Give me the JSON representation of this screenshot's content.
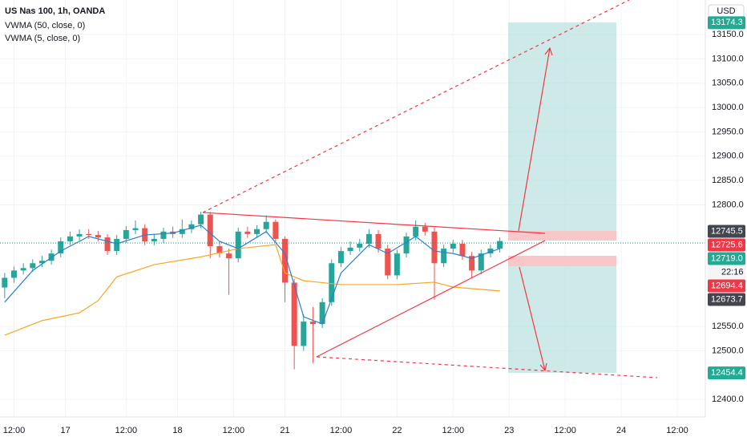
{
  "chart_data": {
    "type": "candlestick",
    "title": "US Nas 100, 1h, OANDA",
    "currency": "USD",
    "xlim": [
      -3,
      148
    ],
    "ylim": [
      12364,
      13221
    ],
    "xticks": [
      {
        "value": 0,
        "label": "12:00"
      },
      {
        "value": 11,
        "label": "17"
      },
      {
        "value": 24,
        "label": "12:00"
      },
      {
        "value": 35,
        "label": "18"
      },
      {
        "value": 47,
        "label": "12:00"
      },
      {
        "value": 58,
        "label": "21"
      },
      {
        "value": 70,
        "label": "12:00"
      },
      {
        "value": 82,
        "label": "22"
      },
      {
        "value": 94,
        "label": "12:00"
      },
      {
        "value": 106,
        "label": "23"
      },
      {
        "value": 118,
        "label": "12:00"
      },
      {
        "value": 130,
        "label": "24"
      },
      {
        "value": 142,
        "label": "12:00"
      }
    ],
    "yticks": [
      {
        "value": 12400,
        "label": "12400.0"
      },
      {
        "value": 12500,
        "label": "12500.0"
      },
      {
        "value": 12550,
        "label": "12550.0"
      },
      {
        "value": 12800,
        "label": "12800.0"
      },
      {
        "value": 12850,
        "label": "12850.0"
      },
      {
        "value": 12900,
        "label": "12900.0"
      },
      {
        "value": 12950,
        "label": "12950.0"
      },
      {
        "value": 13000,
        "label": "13000.0"
      },
      {
        "value": 13050,
        "label": "13050.0"
      },
      {
        "value": 13100,
        "label": "13100.0"
      },
      {
        "value": 13150,
        "label": "13150.0"
      }
    ],
    "grid": true,
    "up_color": "#26a69a",
    "down_color": "#ef5350",
    "candles": {
      "x": [
        -2,
        0,
        2,
        4,
        6,
        8,
        10,
        12,
        14,
        16,
        18,
        20,
        22,
        24,
        26,
        28,
        30,
        32,
        34,
        36,
        38,
        40,
        42,
        44,
        46,
        48,
        50,
        52,
        54,
        56,
        58,
        60,
        62,
        64,
        66,
        68,
        70,
        72,
        74,
        76,
        78,
        80,
        82,
        84,
        86,
        88,
        90,
        92,
        94,
        96,
        98,
        100,
        102,
        104
      ],
      "open": [
        12630,
        12650,
        12665,
        12670,
        12680,
        12685,
        12700,
        12725,
        12735,
        12740,
        12738,
        12733,
        12705,
        12730,
        12748,
        12752,
        12725,
        12730,
        12745,
        12740,
        12750,
        12760,
        12780,
        12715,
        12700,
        12690,
        12745,
        12740,
        12750,
        12765,
        12730,
        12640,
        12510,
        12560,
        12555,
        12600,
        12680,
        12705,
        12712,
        12720,
        12740,
        12710,
        12655,
        12700,
        12735,
        12755,
        12745,
        12680,
        12710,
        12720,
        12695,
        12665,
        12700,
        12710
      ],
      "high": [
        12660,
        12673,
        12680,
        12688,
        12695,
        12708,
        12733,
        12745,
        12750,
        12750,
        12746,
        12740,
        12738,
        12756,
        12768,
        12760,
        12740,
        12753,
        12755,
        12770,
        12768,
        12786,
        12785,
        12725,
        12710,
        12753,
        12755,
        12758,
        12778,
        12770,
        12735,
        12648,
        12575,
        12590,
        12608,
        12688,
        12713,
        12725,
        12730,
        12750,
        12748,
        12718,
        12708,
        12743,
        12768,
        12763,
        12753,
        12718,
        12728,
        12728,
        12703,
        12708,
        12718,
        12733
      ],
      "low": [
        12608,
        12640,
        12657,
        12662,
        12672,
        12677,
        12692,
        12717,
        12727,
        12730,
        12725,
        12697,
        12697,
        12722,
        12740,
        12717,
        12717,
        12722,
        12732,
        12732,
        12742,
        12752,
        12690,
        12692,
        12615,
        12682,
        12732,
        12732,
        12742,
        12722,
        12600,
        12462,
        12500,
        12475,
        12547,
        12592,
        12672,
        12697,
        12704,
        12712,
        12702,
        12647,
        12647,
        12692,
        12727,
        12737,
        12605,
        12672,
        12702,
        12687,
        12650,
        12657,
        12692,
        12702
      ],
      "close": [
        12650,
        12665,
        12670,
        12680,
        12685,
        12700,
        12725,
        12735,
        12740,
        12738,
        12733,
        12705,
        12730,
        12748,
        12752,
        12725,
        12730,
        12745,
        12740,
        12750,
        12760,
        12780,
        12715,
        12700,
        12690,
        12745,
        12740,
        12750,
        12765,
        12730,
        12640,
        12510,
        12560,
        12555,
        12600,
        12680,
        12705,
        12712,
        12720,
        12740,
        12710,
        12655,
        12700,
        12735,
        12755,
        12745,
        12680,
        12710,
        12720,
        12695,
        12665,
        12700,
        12710,
        12725.6
      ]
    },
    "series": [
      {
        "name": "VWMA (50, close, 0)",
        "color": "#f5a623",
        "x": [
          -2,
          6,
          14,
          18,
          22,
          30,
          40,
          48,
          56,
          58,
          62,
          70,
          82,
          90,
          94,
          104
        ],
        "values": [
          12532,
          12562,
          12578,
          12603,
          12652,
          12677,
          12693,
          12710,
          12718,
          12660,
          12644,
          12636,
          12636,
          12641,
          12631,
          12623
        ]
      },
      {
        "name": "VWMA (5, close, 0)",
        "color": "#2a7fd4",
        "x": [
          -2,
          4,
          10,
          16,
          22,
          28,
          34,
          40,
          44,
          48,
          54,
          58,
          62,
          66,
          70,
          76,
          80,
          86,
          90,
          94,
          98,
          104
        ],
        "values": [
          12600,
          12665,
          12705,
          12735,
          12720,
          12738,
          12742,
          12758,
          12725,
          12710,
          12745,
          12700,
          12570,
          12555,
          12660,
          12718,
          12700,
          12735,
          12705,
          12700,
          12690,
          12710
        ]
      }
    ],
    "price_labels": [
      {
        "value": 13174.3,
        "label": "13174.3",
        "color": "#22ab94"
      },
      {
        "value": 12745.5,
        "label": "12745.5",
        "color": "#434651"
      },
      {
        "value": 12725.6,
        "label": "12725.6",
        "color": "#f23645"
      },
      {
        "value": 12719.0,
        "label": "12719.0",
        "color": "#22ab94"
      },
      {
        "value": 12694.4,
        "label": "12694.4",
        "color": "#f23645"
      },
      {
        "value": 12673.7,
        "label": "12673.7",
        "color": "#434651"
      },
      {
        "value": 12454.4,
        "label": "12454.4",
        "color": "#22ab94"
      }
    ],
    "countdown": "22:16"
  }
}
